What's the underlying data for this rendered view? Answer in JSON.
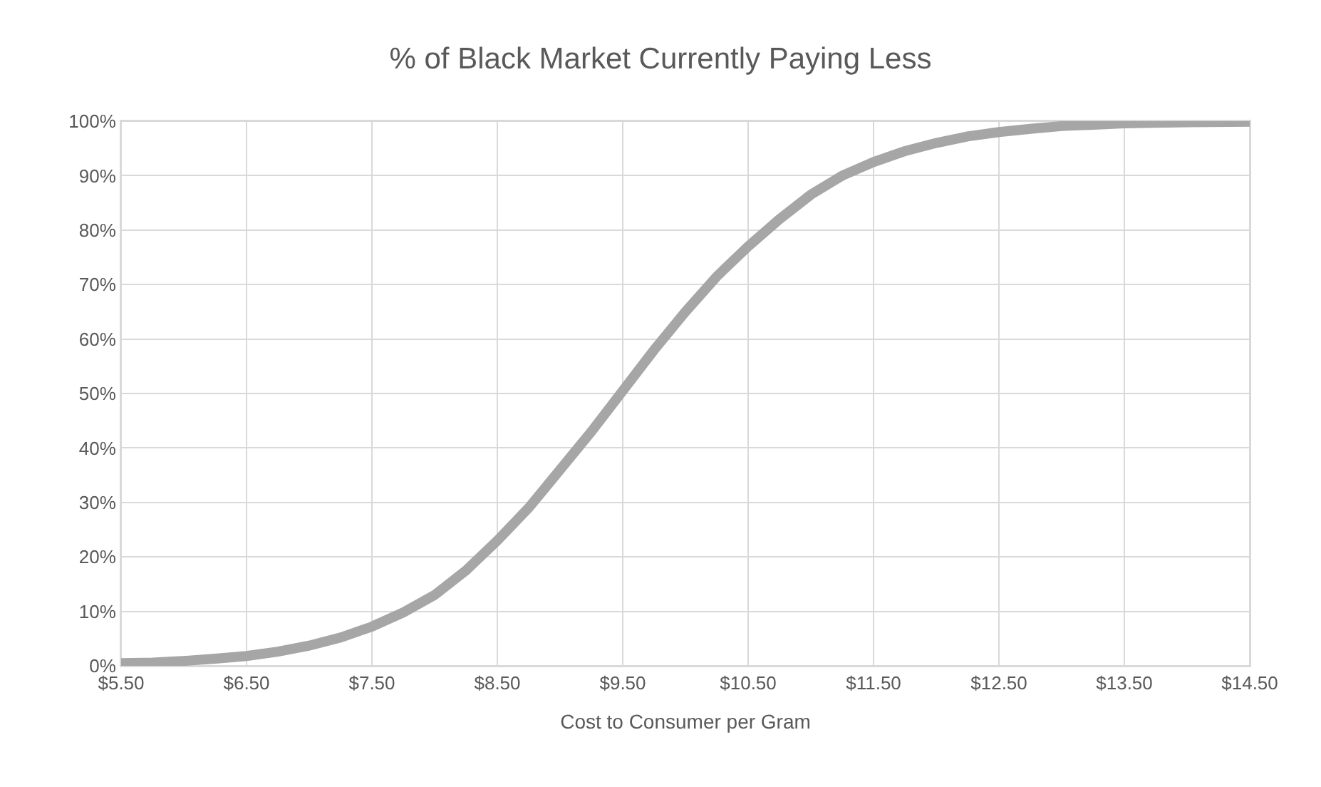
{
  "chart_data": {
    "type": "line",
    "title": "% of Black Market Currently Paying Less",
    "xlabel": "Cost to Consumer per Gram",
    "x": [
      5.5,
      5.75,
      6.0,
      6.25,
      6.5,
      6.75,
      7.0,
      7.25,
      7.5,
      7.75,
      8.0,
      8.25,
      8.5,
      8.75,
      9.0,
      9.25,
      9.5,
      9.75,
      10.0,
      10.25,
      10.5,
      10.75,
      11.0,
      11.25,
      11.5,
      11.75,
      12.0,
      12.25,
      12.5,
      12.75,
      13.0,
      13.5,
      14.0,
      14.5
    ],
    "series": [
      {
        "color": "#a6a6a6",
        "values": [
          0.5,
          0.6,
          0.9,
          1.3,
          1.8,
          2.6,
          3.7,
          5.2,
          7.2,
          9.8,
          13,
          17.5,
          23,
          29,
          36,
          43,
          50.5,
          58,
          65,
          71.5,
          77,
          82,
          86.5,
          90,
          92.5,
          94.5,
          96,
          97.2,
          98,
          98.6,
          99.1,
          99.6,
          99.8,
          99.9
        ]
      }
    ],
    "xlim": [
      5.5,
      14.5
    ],
    "xticks": [
      {
        "value": 5.5,
        "label": "$5.50"
      },
      {
        "value": 6.5,
        "label": "$6.50"
      },
      {
        "value": 7.5,
        "label": "$7.50"
      },
      {
        "value": 8.5,
        "label": "$8.50"
      },
      {
        "value": 9.5,
        "label": "$9.50"
      },
      {
        "value": 10.5,
        "label": "$10.50"
      },
      {
        "value": 11.5,
        "label": "$11.50"
      },
      {
        "value": 12.5,
        "label": "$12.50"
      },
      {
        "value": 13.5,
        "label": "$13.50"
      },
      {
        "value": 14.5,
        "label": "$14.50"
      }
    ],
    "ylim": [
      0,
      100
    ],
    "yticks": [
      {
        "value": 0,
        "label": "0%"
      },
      {
        "value": 10,
        "label": "10%"
      },
      {
        "value": 20,
        "label": "20%"
      },
      {
        "value": 30,
        "label": "30%"
      },
      {
        "value": 40,
        "label": "40%"
      },
      {
        "value": 50,
        "label": "50%"
      },
      {
        "value": 60,
        "label": "60%"
      },
      {
        "value": 70,
        "label": "70%"
      },
      {
        "value": 80,
        "label": "80%"
      },
      {
        "value": 90,
        "label": "90%"
      },
      {
        "value": 100,
        "label": "100%"
      }
    ],
    "grid": true,
    "line_style": "solid"
  }
}
